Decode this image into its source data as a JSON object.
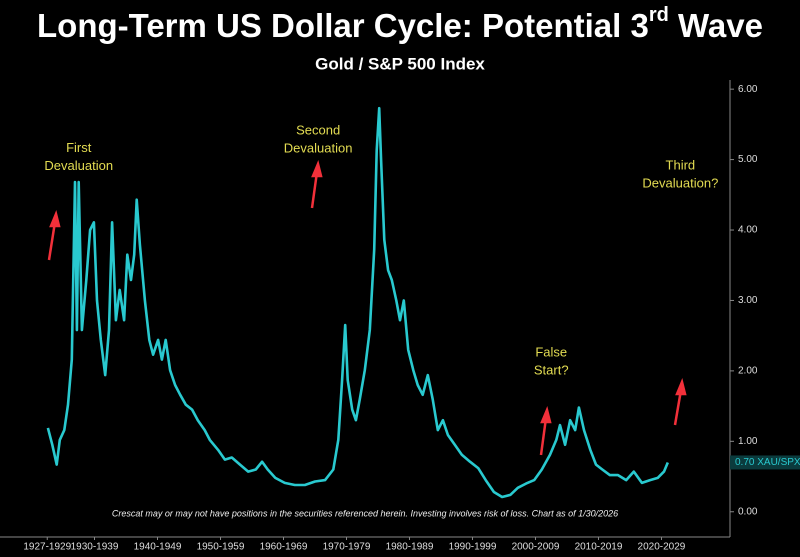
{
  "chart_data": {
    "type": "line",
    "title": "Long-Term US Dollar Cycle: Potential 3rd Wave",
    "subtitle": "Gold / S&P 500 Index",
    "footnote": "Crescat may or may not have positions in the securities referenced herein. Investing involves risk of loss. Chart as of 1/30/2026",
    "annotations": [
      {
        "lines": [
          "First",
          "Devaluation"
        ],
        "x": 1932.5,
        "y": 5.15
      },
      {
        "lines": [
          "Second",
          "Devaluation"
        ],
        "x": 1970.5,
        "y": 5.4
      },
      {
        "lines": [
          "Third",
          "Devaluation?"
        ],
        "x": 2028,
        "y": 4.9
      },
      {
        "lines": [
          "False",
          "Start?"
        ],
        "x": 2007.5,
        "y": 2.25
      }
    ],
    "last_value_label": "0.70 XAU/SPX",
    "xlim": [
      1920,
      2035.56
    ],
    "xticks": [
      {
        "value": 1927.5,
        "label": "1927-1929"
      },
      {
        "value": 1935,
        "label": "1930-1939"
      },
      {
        "value": 1945,
        "label": "1940-1949"
      },
      {
        "value": 1955,
        "label": "1950-1959"
      },
      {
        "value": 1965,
        "label": "1960-1969"
      },
      {
        "value": 1975,
        "label": "1970-1979"
      },
      {
        "value": 1985,
        "label": "1980-1989"
      },
      {
        "value": 1995,
        "label": "1990-1999"
      },
      {
        "value": 2005,
        "label": "2000-2009"
      },
      {
        "value": 2015,
        "label": "2010-2019"
      },
      {
        "value": 2025,
        "label": "2020-2029"
      }
    ],
    "ylim": [
      -0.33,
      6.13
    ],
    "yticks": [
      {
        "value": 0,
        "label": "0.00"
      },
      {
        "value": 1,
        "label": "1.00"
      },
      {
        "value": 2,
        "label": "2.00"
      },
      {
        "value": 3,
        "label": "3.00"
      },
      {
        "value": 4,
        "label": "4.00"
      },
      {
        "value": 5,
        "label": "5.00"
      },
      {
        "value": 6,
        "label": "6.00"
      }
    ],
    "series": [
      {
        "color": "#29c9cf",
        "x": [
          1927.6,
          1928.3,
          1929.0,
          1929.5,
          1930.2,
          1930.8,
          1931.4,
          1931.9,
          1932.2,
          1932.5,
          1933.0,
          1933.7,
          1934.3,
          1934.9,
          1935.4,
          1936.0,
          1936.7,
          1937.3,
          1937.8,
          1938.4,
          1939.0,
          1939.7,
          1940.2,
          1940.8,
          1941.3,
          1941.7,
          1942.2,
          1943.0,
          1943.7,
          1944.3,
          1945.1,
          1945.7,
          1946.3,
          1947.0,
          1947.8,
          1948.6,
          1949.5,
          1950.5,
          1951.4,
          1952.5,
          1953.3,
          1954.6,
          1955.7,
          1956.8,
          1958.1,
          1959.4,
          1960.6,
          1961.6,
          1962.5,
          1963.7,
          1965.2,
          1966.8,
          1968.4,
          1970.0,
          1971.6,
          1972.9,
          1973.7,
          1974.3,
          1974.8,
          1975.2,
          1975.9,
          1976.5,
          1977.1,
          1977.9,
          1978.7,
          1979.4,
          1979.8,
          1980.2,
          1980.5,
          1981.0,
          1981.6,
          1982.2,
          1982.9,
          1983.5,
          1984.1,
          1984.8,
          1985.6,
          1986.3,
          1987.1,
          1987.9,
          1988.7,
          1989.5,
          1990.3,
          1991.1,
          1992.2,
          1993.3,
          1994.6,
          1995.9,
          1997.1,
          1998.4,
          1999.7,
          2001.0,
          2002.2,
          2003.5,
          2004.8,
          2006.0,
          2007.3,
          2008.3,
          2008.9,
          2009.7,
          2010.5,
          2011.3,
          2011.9,
          2012.7,
          2013.7,
          2014.6,
          2015.6,
          2016.8,
          2018.1,
          2019.4,
          2020.6,
          2021.9,
          2023.2,
          2024.4,
          2025.4,
          2026.0
        ],
        "values": [
          1.19,
          0.95,
          0.67,
          1.02,
          1.16,
          1.52,
          2.16,
          4.68,
          2.58,
          4.68,
          2.58,
          3.29,
          4.0,
          4.11,
          3.0,
          2.44,
          1.94,
          2.58,
          4.11,
          2.72,
          3.15,
          2.72,
          3.65,
          3.29,
          3.65,
          4.43,
          3.79,
          3.0,
          2.44,
          2.23,
          2.44,
          2.16,
          2.44,
          2.01,
          1.8,
          1.66,
          1.52,
          1.45,
          1.3,
          1.16,
          1.02,
          0.88,
          0.74,
          0.77,
          0.67,
          0.57,
          0.6,
          0.71,
          0.6,
          0.48,
          0.41,
          0.38,
          0.38,
          0.43,
          0.45,
          0.6,
          1.02,
          1.87,
          2.65,
          1.87,
          1.45,
          1.3,
          1.59,
          2.01,
          2.58,
          3.72,
          5.13,
          5.73,
          4.99,
          3.86,
          3.43,
          3.29,
          3.0,
          2.72,
          3.0,
          2.3,
          2.01,
          1.8,
          1.66,
          1.94,
          1.59,
          1.16,
          1.3,
          1.09,
          0.95,
          0.81,
          0.71,
          0.62,
          0.45,
          0.28,
          0.21,
          0.24,
          0.34,
          0.4,
          0.45,
          0.6,
          0.81,
          1.02,
          1.23,
          0.95,
          1.3,
          1.16,
          1.48,
          1.16,
          0.88,
          0.67,
          0.6,
          0.52,
          0.52,
          0.45,
          0.57,
          0.41,
          0.45,
          0.48,
          0.57,
          0.7
        ]
      }
    ]
  }
}
